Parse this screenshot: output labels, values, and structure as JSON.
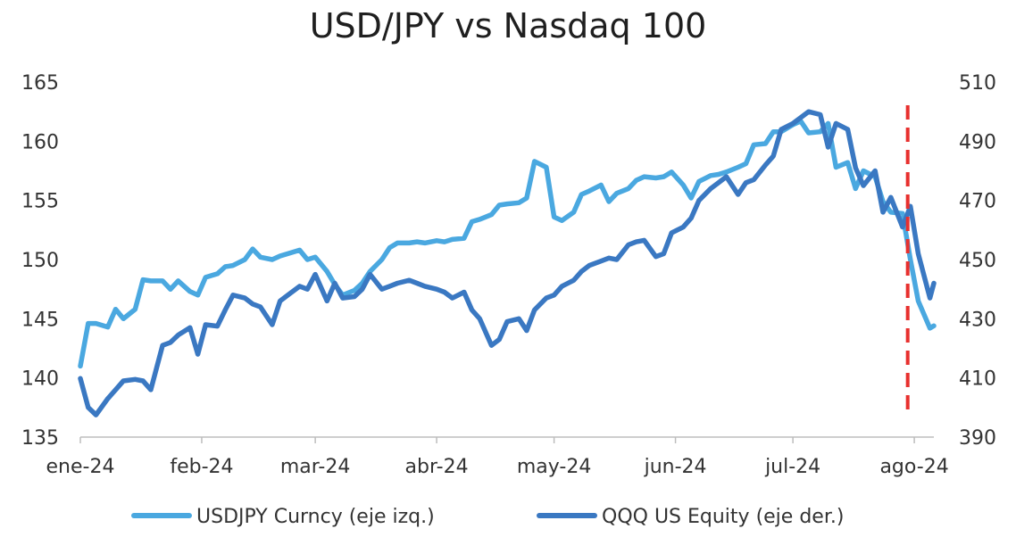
{
  "chart_data": {
    "type": "line",
    "title": "USD/JPY vs Nasdaq 100",
    "x_tick_labels": [
      "ene-24",
      "feb-24",
      "mar-24",
      "abr-24",
      "may-24",
      "jun-24",
      "jul-24",
      "ago-24"
    ],
    "y_left": {
      "ylim": [
        135,
        165
      ],
      "ticks": [
        "135",
        "140",
        "145",
        "150",
        "155",
        "160",
        "165"
      ]
    },
    "y_right": {
      "ylim": [
        390,
        510
      ],
      "ticks": [
        "390",
        "410",
        "430",
        "450",
        "470",
        "490",
        "510"
      ]
    },
    "grid": false,
    "legend_position": "bottom",
    "marker_date": "2024-07-31",
    "series": [
      {
        "name": "USDJPY Curncy (eje izq.)",
        "axis": "left",
        "color": "#4aa8e0",
        "x": [
          "2024-01-01",
          "2024-01-03",
          "2024-01-05",
          "2024-01-08",
          "2024-01-10",
          "2024-01-12",
          "2024-01-15",
          "2024-01-17",
          "2024-01-19",
          "2024-01-22",
          "2024-01-24",
          "2024-01-26",
          "2024-01-29",
          "2024-01-31",
          "2024-02-02",
          "2024-02-05",
          "2024-02-07",
          "2024-02-09",
          "2024-02-12",
          "2024-02-14",
          "2024-02-16",
          "2024-02-19",
          "2024-02-21",
          "2024-02-23",
          "2024-02-26",
          "2024-02-28",
          "2024-03-01",
          "2024-03-04",
          "2024-03-06",
          "2024-03-08",
          "2024-03-11",
          "2024-03-13",
          "2024-03-15",
          "2024-03-18",
          "2024-03-20",
          "2024-03-22",
          "2024-03-25",
          "2024-03-27",
          "2024-03-29",
          "2024-04-01",
          "2024-04-03",
          "2024-04-05",
          "2024-04-08",
          "2024-04-10",
          "2024-04-12",
          "2024-04-15",
          "2024-04-17",
          "2024-04-19",
          "2024-04-22",
          "2024-04-24",
          "2024-04-26",
          "2024-04-29",
          "2024-05-01",
          "2024-05-03",
          "2024-05-06",
          "2024-05-08",
          "2024-05-10",
          "2024-05-13",
          "2024-05-15",
          "2024-05-17",
          "2024-05-20",
          "2024-05-22",
          "2024-05-24",
          "2024-05-27",
          "2024-05-29",
          "2024-05-31",
          "2024-06-03",
          "2024-06-05",
          "2024-06-07",
          "2024-06-10",
          "2024-06-12",
          "2024-06-14",
          "2024-06-17",
          "2024-06-19",
          "2024-06-21",
          "2024-06-24",
          "2024-06-26",
          "2024-06-28",
          "2024-07-01",
          "2024-07-03",
          "2024-07-05",
          "2024-07-08",
          "2024-07-10",
          "2024-07-12",
          "2024-07-15",
          "2024-07-17",
          "2024-07-19",
          "2024-07-22",
          "2024-07-24",
          "2024-07-26",
          "2024-07-29",
          "2024-07-31",
          "2024-08-02",
          "2024-08-05",
          "2024-08-06"
        ],
        "values": [
          141.0,
          144.6,
          144.6,
          144.3,
          145.8,
          145.0,
          145.8,
          148.3,
          148.2,
          148.2,
          147.5,
          148.2,
          147.3,
          147.0,
          148.5,
          148.8,
          149.4,
          149.5,
          150.0,
          150.9,
          150.2,
          150.0,
          150.3,
          150.5,
          150.8,
          150.0,
          150.2,
          149.0,
          147.9,
          147.0,
          147.4,
          148.0,
          149.0,
          150.0,
          151.0,
          151.4,
          151.4,
          151.5,
          151.4,
          151.6,
          151.5,
          151.7,
          151.8,
          153.2,
          153.4,
          153.8,
          154.6,
          154.7,
          154.8,
          155.2,
          158.3,
          157.8,
          153.6,
          153.3,
          154.0,
          155.5,
          155.8,
          156.3,
          154.9,
          155.6,
          156.0,
          156.7,
          157.0,
          156.9,
          157.0,
          157.4,
          156.3,
          155.2,
          156.6,
          157.1,
          157.2,
          157.4,
          157.8,
          158.1,
          159.7,
          159.8,
          160.8,
          160.8,
          161.4,
          161.7,
          160.7,
          160.8,
          161.5,
          157.8,
          158.2,
          156.0,
          157.5,
          157.0,
          154.9,
          154.0,
          153.9,
          150.0,
          146.5,
          144.2,
          144.4
        ]
      },
      {
        "name": "QQQ US Equity (eje der.)",
        "axis": "right",
        "color": "#3a78c2",
        "x": [
          "2024-01-01",
          "2024-01-03",
          "2024-01-05",
          "2024-01-08",
          "2024-01-10",
          "2024-01-12",
          "2024-01-15",
          "2024-01-17",
          "2024-01-19",
          "2024-01-22",
          "2024-01-24",
          "2024-01-26",
          "2024-01-29",
          "2024-01-31",
          "2024-02-02",
          "2024-02-05",
          "2024-02-07",
          "2024-02-09",
          "2024-02-12",
          "2024-02-14",
          "2024-02-16",
          "2024-02-19",
          "2024-02-21",
          "2024-02-23",
          "2024-02-26",
          "2024-02-28",
          "2024-03-01",
          "2024-03-04",
          "2024-03-06",
          "2024-03-08",
          "2024-03-11",
          "2024-03-13",
          "2024-03-15",
          "2024-03-18",
          "2024-03-20",
          "2024-03-22",
          "2024-03-25",
          "2024-03-27",
          "2024-03-29",
          "2024-04-01",
          "2024-04-03",
          "2024-04-05",
          "2024-04-08",
          "2024-04-10",
          "2024-04-12",
          "2024-04-15",
          "2024-04-17",
          "2024-04-19",
          "2024-04-22",
          "2024-04-24",
          "2024-04-26",
          "2024-04-29",
          "2024-05-01",
          "2024-05-03",
          "2024-05-06",
          "2024-05-08",
          "2024-05-10",
          "2024-05-13",
          "2024-05-15",
          "2024-05-17",
          "2024-05-20",
          "2024-05-22",
          "2024-05-24",
          "2024-05-27",
          "2024-05-29",
          "2024-05-31",
          "2024-06-03",
          "2024-06-05",
          "2024-06-07",
          "2024-06-10",
          "2024-06-12",
          "2024-06-14",
          "2024-06-17",
          "2024-06-19",
          "2024-06-21",
          "2024-06-24",
          "2024-06-26",
          "2024-06-28",
          "2024-07-01",
          "2024-07-03",
          "2024-07-05",
          "2024-07-08",
          "2024-07-10",
          "2024-07-12",
          "2024-07-15",
          "2024-07-17",
          "2024-07-19",
          "2024-07-22",
          "2024-07-24",
          "2024-07-26",
          "2024-07-29",
          "2024-07-31",
          "2024-08-02",
          "2024-08-05",
          "2024-08-06"
        ],
        "values": [
          409.8,
          400.0,
          397.5,
          403.0,
          406.0,
          409.0,
          409.5,
          409.0,
          406.0,
          421.0,
          422.0,
          424.5,
          427.0,
          418.0,
          428.0,
          427.5,
          433.0,
          438.0,
          437.0,
          435.0,
          434.0,
          428.0,
          436.0,
          438.0,
          441.0,
          440.0,
          445.0,
          436.0,
          442.0,
          437.0,
          437.5,
          440.0,
          445.0,
          440.0,
          441.0,
          442.0,
          443.0,
          442.0,
          441.0,
          440.0,
          439.0,
          437.0,
          439.0,
          433.0,
          430.0,
          421.0,
          423.0,
          429.0,
          430.0,
          426.0,
          433.0,
          437.0,
          438.0,
          441.0,
          443.0,
          446.0,
          448.0,
          449.5,
          450.5,
          450.0,
          455.0,
          456.0,
          456.5,
          451.0,
          452.0,
          459.0,
          461.0,
          464.0,
          470.0,
          474.0,
          476.0,
          478.0,
          472.0,
          476.0,
          477.0,
          482.0,
          485.0,
          494.0,
          496.0,
          498.0,
          500.0,
          499.0,
          488.0,
          496.0,
          494.0,
          481.0,
          475.0,
          480.0,
          466.0,
          471.0,
          461.0,
          468.0,
          452.0,
          437.0,
          442.0
        ]
      }
    ]
  }
}
